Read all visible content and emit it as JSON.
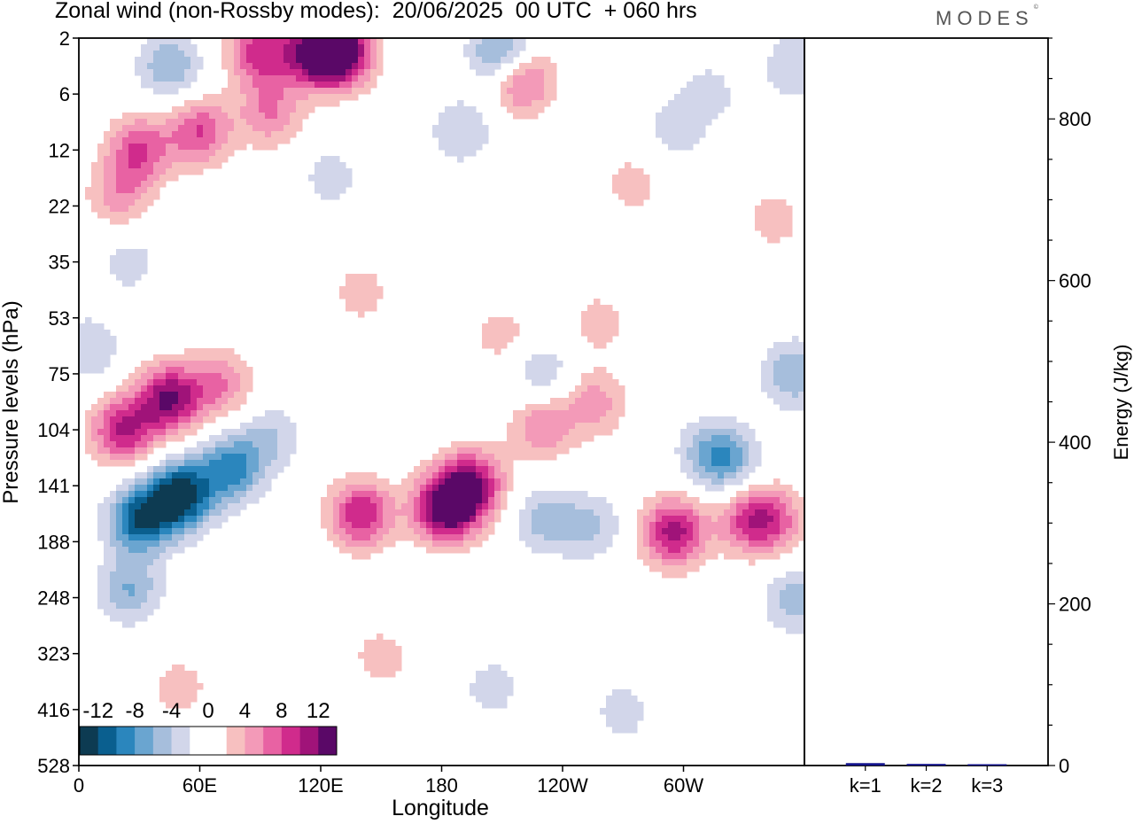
{
  "title": "Zonal wind (non-Rossby modes):  20/06/2025  00 UTC  + 060 hrs",
  "logo": {
    "text": "MODES",
    "mark": "©"
  },
  "chart_data": [
    {
      "type": "heatmap",
      "xlabel": "Longitude",
      "ylabel": "Pressure levels (hPa)",
      "x_ticks": [
        "0",
        "60E",
        "120E",
        "180",
        "120W",
        "60W"
      ],
      "y_ticks": [
        "2",
        "6",
        "12",
        "22",
        "35",
        "53",
        "75",
        "104",
        "141",
        "188",
        "248",
        "323",
        "416",
        "528"
      ],
      "colorbar": {
        "labels": [
          "-12",
          "-8",
          "-4",
          "0",
          "4",
          "8",
          "12"
        ],
        "levels": [
          -14,
          -12,
          -10,
          -8,
          -6,
          -4,
          -2,
          0,
          2,
          4,
          6,
          8,
          10,
          12,
          14
        ],
        "colors": [
          "#0d3b52",
          "#0a5f8f",
          "#2b86bd",
          "#6aa5d0",
          "#a6bedc",
          "#d2d6ea",
          "#ffffff",
          "#ffffff",
          "#f7c0c0",
          "#f39ab8",
          "#e862a3",
          "#d02b8c",
          "#a01379",
          "#5a0867"
        ]
      },
      "features": [
        {
          "lon": 50,
          "level": 150,
          "value": -14
        },
        {
          "lon": 30,
          "level": 170,
          "value": -11
        },
        {
          "lon": 75,
          "level": 130,
          "value": -9
        },
        {
          "lon": 25,
          "level": 240,
          "value": -6
        },
        {
          "lon": 95,
          "level": 110,
          "value": -4
        },
        {
          "lon": 5,
          "level": 65,
          "value": -4
        },
        {
          "lon": 45,
          "level": 88,
          "value": 12
        },
        {
          "lon": 22,
          "level": 104,
          "value": 10
        },
        {
          "lon": 70,
          "level": 80,
          "value": 6
        },
        {
          "lon": 140,
          "level": 165,
          "value": 10
        },
        {
          "lon": 182,
          "level": 160,
          "value": 14
        },
        {
          "lon": 195,
          "level": 140,
          "value": 11
        },
        {
          "lon": 230,
          "level": 102,
          "value": 6
        },
        {
          "lon": 256,
          "level": 90,
          "value": 5
        },
        {
          "lon": 232,
          "level": 170,
          "value": -5
        },
        {
          "lon": 255,
          "level": 175,
          "value": -4
        },
        {
          "lon": 295,
          "level": 180,
          "value": 11
        },
        {
          "lon": 332,
          "level": 170,
          "value": 7
        },
        {
          "lon": 345,
          "level": 170,
          "value": 6
        },
        {
          "lon": 312,
          "level": 118,
          "value": -4
        },
        {
          "lon": 322,
          "level": 125,
          "value": -6
        },
        {
          "lon": 355,
          "level": 75,
          "value": -6
        },
        {
          "lon": 355,
          "level": 250,
          "value": -5
        },
        {
          "lon": 150,
          "level": 330,
          "value": 3
        },
        {
          "lon": 50,
          "level": 380,
          "value": 3
        },
        {
          "lon": 205,
          "level": 380,
          "value": -3
        },
        {
          "lon": 270,
          "level": 420,
          "value": -3
        },
        {
          "lon": 210,
          "level": 60,
          "value": 3
        },
        {
          "lon": 258,
          "level": 55,
          "value": 3
        },
        {
          "lon": 230,
          "level": 75,
          "value": -4
        },
        {
          "lon": 140,
          "level": 45,
          "value": 3
        },
        {
          "lon": 45,
          "level": 4,
          "value": -6
        },
        {
          "lon": 90,
          "level": 3,
          "value": 9
        },
        {
          "lon": 118,
          "level": 3,
          "value": 12
        },
        {
          "lon": 130,
          "level": 3,
          "value": 13
        },
        {
          "lon": 210,
          "level": 3,
          "value": -8
        },
        {
          "lon": 220,
          "level": 5,
          "value": 8
        },
        {
          "lon": 60,
          "level": 10,
          "value": 8
        },
        {
          "lon": 30,
          "level": 12,
          "value": 8
        },
        {
          "lon": 95,
          "level": 8,
          "value": 6
        },
        {
          "lon": 125,
          "level": 17,
          "value": -3
        },
        {
          "lon": 190,
          "level": 10,
          "value": -4
        },
        {
          "lon": 20,
          "level": 20,
          "value": 5
        },
        {
          "lon": 25,
          "level": 35,
          "value": -3
        },
        {
          "lon": 275,
          "level": 18,
          "value": 3
        },
        {
          "lon": 312,
          "level": 6,
          "value": -3
        },
        {
          "lon": 355,
          "level": 4,
          "value": -4
        },
        {
          "lon": 345,
          "level": 25,
          "value": 3
        },
        {
          "lon": 295,
          "level": 10,
          "value": -3
        }
      ]
    },
    {
      "type": "bar",
      "ylabel": "Energy (J/kg)",
      "ylim": [
        0,
        900
      ],
      "y_ticks": [
        0,
        200,
        400,
        600,
        800
      ],
      "categories": [
        "k=1",
        "k=2",
        "k=3"
      ],
      "values": [
        3,
        2,
        1
      ],
      "bar_color": "#14148c"
    }
  ]
}
